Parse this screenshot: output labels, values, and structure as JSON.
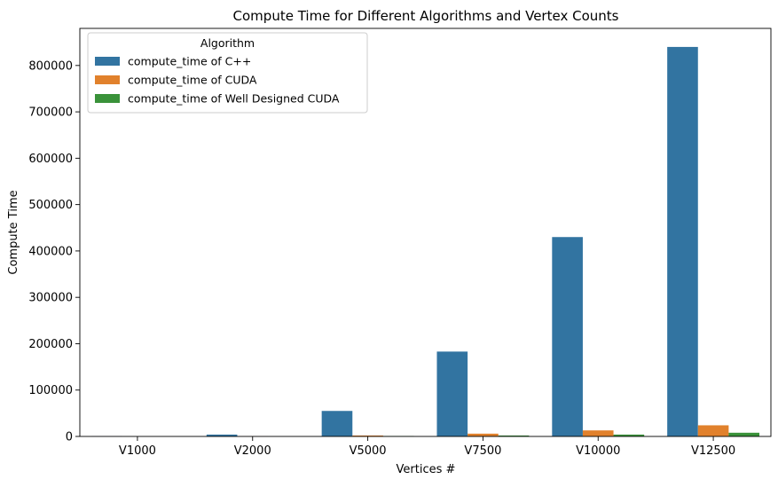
{
  "chart_data": {
    "type": "bar",
    "title": "Compute Time for Different Algorithms and Vertex Counts",
    "xlabel": "Vertices #",
    "ylabel": "Compute Time",
    "categories": [
      "V1000",
      "V2000",
      "V5000",
      "V7500",
      "V10000",
      "V12500"
    ],
    "ylim": [
      0,
      880000
    ],
    "yticks": [
      0,
      100000,
      200000,
      300000,
      400000,
      500000,
      600000,
      700000,
      800000
    ],
    "grid": false,
    "legend": {
      "title": "Algorithm",
      "placement": "top-left"
    },
    "series": [
      {
        "name": "compute_time of C++",
        "color": "#3274a1",
        "values": [
          500,
          4000,
          55000,
          183000,
          430000,
          840000
        ]
      },
      {
        "name": "compute_time of CUDA",
        "color": "#e1812c",
        "values": [
          100,
          300,
          2000,
          6000,
          13000,
          24000
        ]
      },
      {
        "name": "compute_time of Well Designed CUDA",
        "color": "#3a923a",
        "values": [
          50,
          100,
          1000,
          2000,
          4000,
          8000
        ]
      }
    ]
  }
}
